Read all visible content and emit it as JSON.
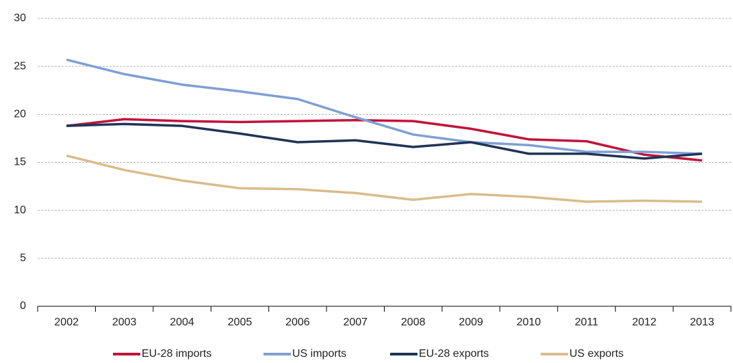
{
  "chart_data": {
    "type": "line",
    "categories": [
      "2002",
      "2003",
      "2004",
      "2005",
      "2006",
      "2007",
      "2008",
      "2009",
      "2010",
      "2011",
      "2012",
      "2013"
    ],
    "series": [
      {
        "name": "EU-28 imports",
        "color": "#c0143c",
        "values": [
          18.8,
          19.5,
          19.3,
          19.2,
          19.3,
          19.4,
          19.3,
          18.5,
          17.4,
          17.2,
          15.8,
          15.2
        ]
      },
      {
        "name": "US imports",
        "color": "#7f9fd4",
        "values": [
          25.7,
          24.2,
          23.1,
          22.4,
          21.6,
          19.7,
          17.9,
          17.1,
          16.8,
          16.1,
          16.1,
          15.9
        ]
      },
      {
        "name": "EU-28 exports",
        "color": "#1f3455",
        "values": [
          18.8,
          19.0,
          18.8,
          18.0,
          17.1,
          17.3,
          16.6,
          17.1,
          15.9,
          15.9,
          15.4,
          15.9
        ]
      },
      {
        "name": "US exports",
        "color": "#d9bc8c",
        "values": [
          15.7,
          14.2,
          13.1,
          12.3,
          12.2,
          11.8,
          11.1,
          11.7,
          11.4,
          10.9,
          11.0,
          10.9
        ]
      }
    ],
    "ylim": [
      0,
      30
    ],
    "yticks": [
      0,
      5,
      10,
      15,
      20,
      25,
      30
    ],
    "grid": true,
    "legend": "bottom"
  }
}
